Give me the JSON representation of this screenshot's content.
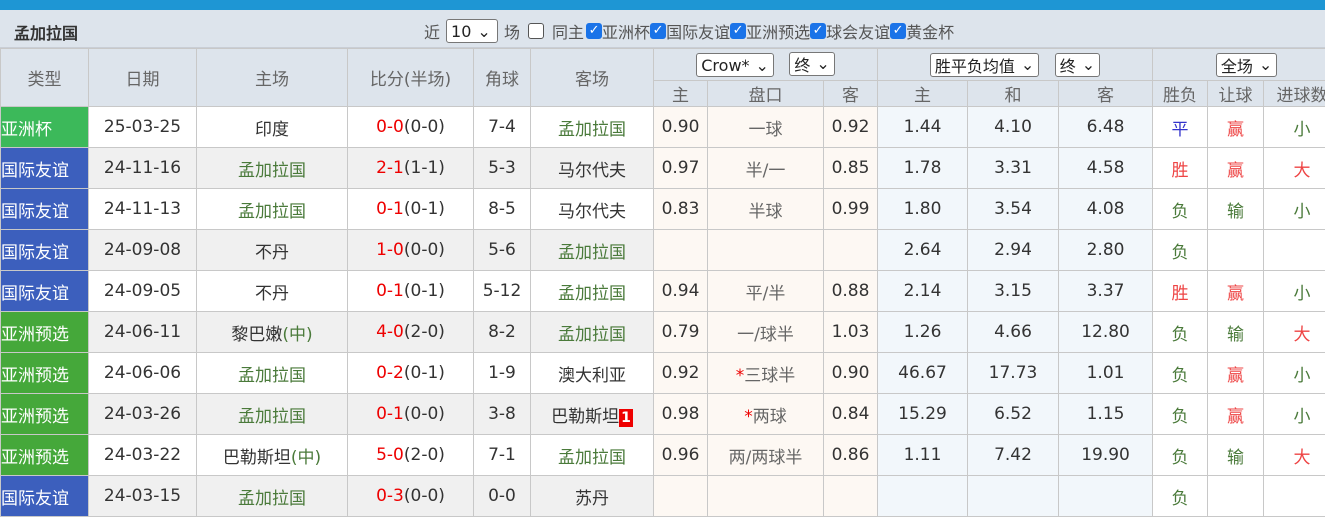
{
  "title": "孟加拉国",
  "filters": {
    "near": "近",
    "count": "10",
    "matches": "场",
    "same_host": "同主",
    "leagues": [
      {
        "label": "亚洲杯",
        "checked": true
      },
      {
        "label": "国际友谊",
        "checked": true
      },
      {
        "label": "亚洲预选",
        "checked": true
      },
      {
        "label": "球会友谊",
        "checked": true
      },
      {
        "label": "黄金杯",
        "checked": true
      }
    ]
  },
  "headers": {
    "type": "类型",
    "date": "日期",
    "home": "主场",
    "score": "比分(半场)",
    "corner": "角球",
    "away": "客场",
    "company": "Crow*",
    "final1": "终",
    "odds_type": "胜平负均值",
    "final2": "终",
    "scope": "全场",
    "ah_home": "主",
    "ah_line": "盘口",
    "ah_away": "客",
    "eu_home": "主",
    "eu_draw": "和",
    "eu_away": "客",
    "wl": "胜负",
    "handicap": "让球",
    "goals": "进球数"
  },
  "colors": {
    "亚洲杯": "#3cb95a",
    "国际友谊": "#3c5fbd",
    "亚洲预选": "#45a83a"
  },
  "rows": [
    {
      "type": "亚洲杯",
      "date": "25-03-25",
      "home": "印度",
      "home_team": false,
      "ft": "0-0",
      "ht": "(0-0)",
      "corner": "7-4",
      "away": "孟加拉国",
      "away_team": true,
      "ah_h": "0.90",
      "line": "一球",
      "ah_a": "0.92",
      "eu_h": "1.44",
      "eu_d": "4.10",
      "eu_a": "6.48",
      "wl": "平",
      "hc": "赢",
      "goals": "小"
    },
    {
      "type": "国际友谊",
      "date": "24-11-16",
      "home": "孟加拉国",
      "home_team": true,
      "ft": "2-1",
      "ht": "(1-1)",
      "corner": "5-3",
      "away": "马尔代夫",
      "ah_h": "0.97",
      "line": "半/一",
      "ah_a": "0.85",
      "eu_h": "1.78",
      "eu_d": "3.31",
      "eu_a": "4.58",
      "wl": "胜",
      "hc": "赢",
      "goals": "大"
    },
    {
      "type": "国际友谊",
      "date": "24-11-13",
      "home": "孟加拉国",
      "home_team": true,
      "ft": "0-1",
      "ht": "(0-1)",
      "corner": "8-5",
      "away": "马尔代夫",
      "ah_h": "0.83",
      "line": "半球",
      "ah_a": "0.99",
      "eu_h": "1.80",
      "eu_d": "3.54",
      "eu_a": "4.08",
      "wl": "负",
      "hc": "输",
      "goals": "小"
    },
    {
      "type": "国际友谊",
      "date": "24-09-08",
      "home": "不丹",
      "ft": "1-0",
      "ht": "(0-0)",
      "corner": "5-6",
      "away": "孟加拉国",
      "away_team": true,
      "ah_h": "",
      "line": "",
      "ah_a": "",
      "eu_h": "2.64",
      "eu_d": "2.94",
      "eu_a": "2.80",
      "wl": "负",
      "hc": "",
      "goals": ""
    },
    {
      "type": "国际友谊",
      "date": "24-09-05",
      "home": "不丹",
      "ft": "0-1",
      "ht": "(0-1)",
      "corner": "5-12",
      "away": "孟加拉国",
      "away_team": true,
      "ah_h": "0.94",
      "line": "平/半",
      "ah_a": "0.88",
      "eu_h": "2.14",
      "eu_d": "3.15",
      "eu_a": "3.37",
      "wl": "胜",
      "hc": "赢",
      "goals": "小"
    },
    {
      "type": "亚洲预选",
      "date": "24-06-11",
      "home": "黎巴嫩",
      "neutral": "(中)",
      "ft": "4-0",
      "ht": "(2-0)",
      "corner": "8-2",
      "away": "孟加拉国",
      "away_team": true,
      "ah_h": "0.79",
      "line": "一/球半",
      "ah_a": "1.03",
      "eu_h": "1.26",
      "eu_d": "4.66",
      "eu_a": "12.80",
      "wl": "负",
      "hc": "输",
      "goals": "大"
    },
    {
      "type": "亚洲预选",
      "date": "24-06-06",
      "home": "孟加拉国",
      "home_team": true,
      "ft": "0-2",
      "ht": "(0-1)",
      "corner": "1-9",
      "away": "澳大利亚",
      "ah_h": "0.92",
      "star": "*",
      "line": "三球半",
      "ah_a": "0.90",
      "eu_h": "46.67",
      "eu_d": "17.73",
      "eu_a": "1.01",
      "wl": "负",
      "hc": "赢",
      "goals": "小"
    },
    {
      "type": "亚洲预选",
      "date": "24-03-26",
      "home": "孟加拉国",
      "home_team": true,
      "ft": "0-1",
      "ht": "(0-0)",
      "corner": "3-8",
      "away": "巴勒斯坦",
      "red_card": "1",
      "ah_h": "0.98",
      "star": "*",
      "line": "两球",
      "ah_a": "0.84",
      "eu_h": "15.29",
      "eu_d": "6.52",
      "eu_a": "1.15",
      "wl": "负",
      "hc": "赢",
      "goals": "小"
    },
    {
      "type": "亚洲预选",
      "date": "24-03-22",
      "home": "巴勒斯坦",
      "neutral": "(中)",
      "ft": "5-0",
      "ht": "(2-0)",
      "corner": "7-1",
      "away": "孟加拉国",
      "away_team": true,
      "ah_h": "0.96",
      "line": "两/两球半",
      "ah_a": "0.86",
      "eu_h": "1.11",
      "eu_d": "7.42",
      "eu_a": "19.90",
      "wl": "负",
      "hc": "输",
      "goals": "大"
    },
    {
      "type": "国际友谊",
      "date": "24-03-15",
      "home": "孟加拉国",
      "home_team": true,
      "ft": "0-3",
      "ht": "(0-0)",
      "corner": "0-0",
      "away": "苏丹",
      "ah_h": "",
      "line": "",
      "ah_a": "",
      "eu_h": "",
      "eu_d": "",
      "eu_a": "",
      "wl": "负",
      "hc": "",
      "goals": ""
    }
  ]
}
